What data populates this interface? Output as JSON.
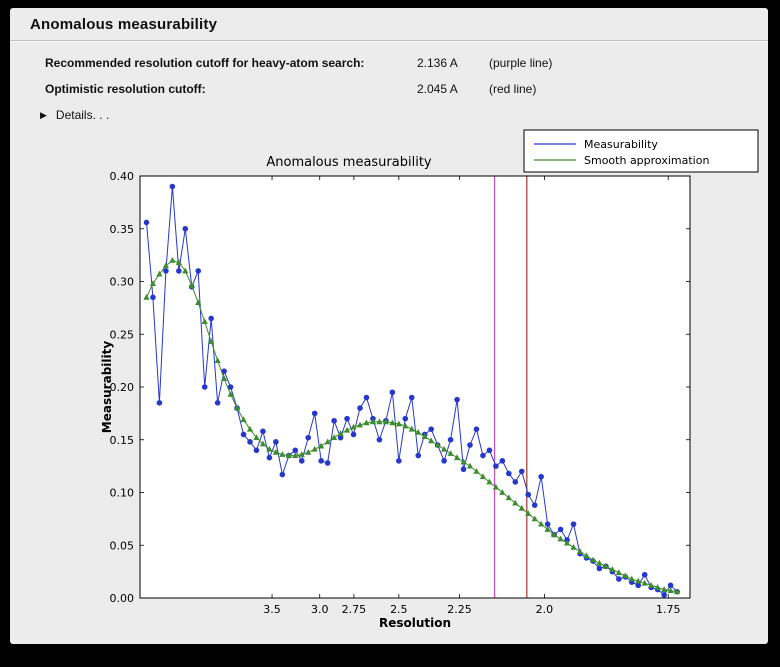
{
  "window": {
    "title": "Anomalous measurability"
  },
  "info": {
    "rows": [
      {
        "label": "Recommended resolution cutoff for heavy-atom search:",
        "value": "2.136 A",
        "note": "(purple line)"
      },
      {
        "label": "Optimistic resolution cutoff:",
        "value": "2.045 A",
        "note": "(red line)"
      }
    ],
    "details_label": "Details. . .",
    "details_icon": "disclosure-triangle-right"
  },
  "chart_data": {
    "type": "line",
    "title": "Anomalous measurability",
    "xlabel": "Resolution",
    "ylabel": "Measurability",
    "x_axis_transform": "inverse_d_squared",
    "xlim_s2": [
      0.0,
      0.34
    ],
    "ylim": [
      0.0,
      0.4
    ],
    "ytick_step": 0.05,
    "xticks": [
      3.5,
      3.0,
      2.75,
      2.5,
      2.25,
      2.0,
      1.75
    ],
    "xtick_labels": [
      "3.5",
      "3.0",
      "2.75",
      "2.5",
      "2.25",
      "2.0",
      "1.75"
    ],
    "grid": false,
    "legend_position": "upper-right",
    "legend": [
      {
        "label": "Measurability",
        "color": "#2638cc"
      },
      {
        "label": "Smooth approximation",
        "color": "#3d8c2e"
      }
    ],
    "vlines": [
      {
        "resolution": 2.136,
        "color": "#c050c0",
        "meaning": "purple line"
      },
      {
        "resolution": 2.045,
        "color": "#a03328",
        "meaning": "red line"
      }
    ],
    "x_s2": [
      0.004,
      0.008,
      0.012,
      0.016,
      0.02,
      0.024,
      0.028,
      0.032,
      0.036,
      0.04,
      0.044,
      0.048,
      0.052,
      0.056,
      0.06,
      0.064,
      0.068,
      0.072,
      0.076,
      0.08,
      0.084,
      0.088,
      0.092,
      0.096,
      0.1,
      0.104,
      0.108,
      0.112,
      0.116,
      0.12,
      0.124,
      0.128,
      0.132,
      0.136,
      0.14,
      0.144,
      0.148,
      0.152,
      0.156,
      0.16,
      0.164,
      0.168,
      0.172,
      0.176,
      0.18,
      0.184,
      0.188,
      0.192,
      0.196,
      0.2,
      0.204,
      0.208,
      0.212,
      0.216,
      0.22,
      0.224,
      0.228,
      0.232,
      0.236,
      0.24,
      0.244,
      0.248,
      0.252,
      0.256,
      0.26,
      0.264,
      0.268,
      0.272,
      0.276,
      0.28,
      0.284,
      0.288,
      0.292,
      0.296,
      0.3,
      0.304,
      0.308,
      0.312,
      0.316,
      0.32,
      0.324,
      0.328,
      0.332
    ],
    "series": [
      {
        "name": "Measurability",
        "color": "#2638cc",
        "marker": "circle",
        "values": [
          0.356,
          0.285,
          0.185,
          0.31,
          0.39,
          0.31,
          0.35,
          0.295,
          0.31,
          0.2,
          0.265,
          0.185,
          0.215,
          0.2,
          0.18,
          0.155,
          0.148,
          0.14,
          0.158,
          0.133,
          0.148,
          0.117,
          0.135,
          0.14,
          0.13,
          0.152,
          0.175,
          0.13,
          0.128,
          0.168,
          0.152,
          0.17,
          0.155,
          0.18,
          0.19,
          0.17,
          0.15,
          0.168,
          0.195,
          0.13,
          0.17,
          0.19,
          0.135,
          0.155,
          0.16,
          0.145,
          0.13,
          0.15,
          0.188,
          0.122,
          0.145,
          0.16,
          0.135,
          0.14,
          0.125,
          0.13,
          0.118,
          0.11,
          0.12,
          0.098,
          0.088,
          0.115,
          0.07,
          0.06,
          0.065,
          0.055,
          0.07,
          0.042,
          0.038,
          0.035,
          0.028,
          0.03,
          0.025,
          0.018,
          0.02,
          0.015,
          0.012,
          0.022,
          0.01,
          0.008,
          0.003,
          0.012,
          0.006
        ]
      },
      {
        "name": "Smooth approximation",
        "color": "#3d8c2e",
        "marker": "triangle",
        "values": [
          0.285,
          0.298,
          0.307,
          0.315,
          0.32,
          0.318,
          0.31,
          0.296,
          0.28,
          0.262,
          0.243,
          0.225,
          0.208,
          0.193,
          0.18,
          0.169,
          0.16,
          0.152,
          0.146,
          0.141,
          0.138,
          0.136,
          0.135,
          0.135,
          0.136,
          0.138,
          0.141,
          0.144,
          0.148,
          0.152,
          0.156,
          0.159,
          0.162,
          0.164,
          0.166,
          0.167,
          0.167,
          0.167,
          0.166,
          0.165,
          0.163,
          0.16,
          0.157,
          0.153,
          0.149,
          0.145,
          0.141,
          0.137,
          0.133,
          0.129,
          0.125,
          0.12,
          0.115,
          0.11,
          0.105,
          0.1,
          0.095,
          0.09,
          0.085,
          0.08,
          0.075,
          0.07,
          0.065,
          0.06,
          0.056,
          0.052,
          0.048,
          0.044,
          0.04,
          0.036,
          0.033,
          0.03,
          0.027,
          0.024,
          0.021,
          0.018,
          0.016,
          0.014,
          0.012,
          0.01,
          0.008,
          0.007,
          0.006
        ]
      }
    ]
  }
}
